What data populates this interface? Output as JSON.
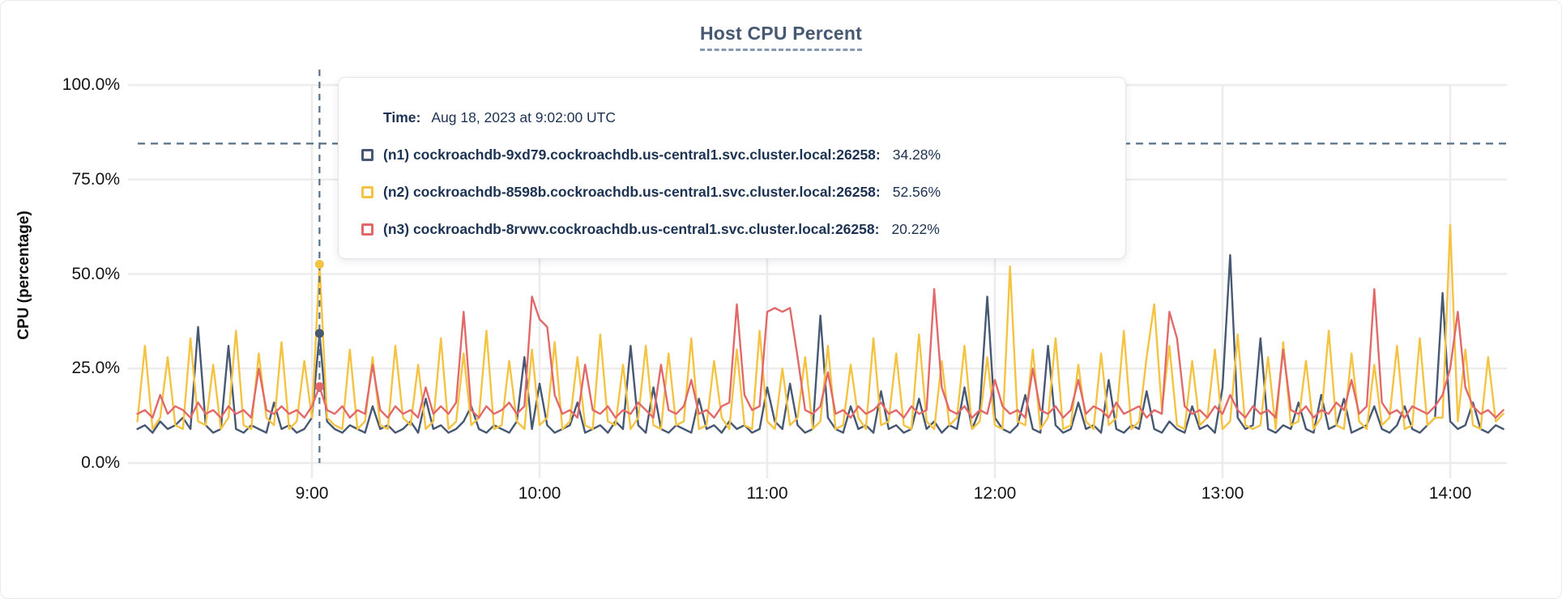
{
  "title": "Host CPU Percent",
  "tooltip": {
    "time_label": "Time:",
    "time_value": "Aug 18, 2023 at 9:02:00 UTC",
    "rows": [
      {
        "label": "(n1) cockroachdb-9xd79.cockroachdb.us-central1.svc.cluster.local:26258:",
        "value": "34.28%",
        "color": "#475872"
      },
      {
        "label": "(n2) cockroachdb-8598b.cockroachdb.us-central1.svc.cluster.local:26258:",
        "value": "52.56%",
        "color": "#f5c342"
      },
      {
        "label": "(n3) cockroachdb-8rvwv.cockroachdb.us-central1.svc.cluster.local:26258:",
        "value": "20.22%",
        "color": "#e2696a"
      }
    ]
  },
  "chart_data": {
    "type": "line",
    "title": "Host CPU Percent",
    "xlabel": "",
    "ylabel": "CPU (percentage)",
    "ylim": [
      0,
      100
    ],
    "y_ticks": [
      "100.0%",
      "75.0%",
      "50.0%",
      "25.0%",
      "0.0%"
    ],
    "y_tick_values": [
      100,
      75,
      50,
      25,
      0
    ],
    "x_ticks": [
      "9:00",
      "10:00",
      "11:00",
      "12:00",
      "13:00",
      "14:00"
    ],
    "x_tick_hours": [
      9,
      10,
      11,
      12,
      13,
      14
    ],
    "grid": true,
    "threshold_percent": 84.5,
    "hover": {
      "hour": 9.0333,
      "time": "Aug 18, 2023 at 9:02:00 UTC",
      "values": [
        34.28,
        52.56,
        20.22
      ]
    },
    "x_start_hour": 8.2333,
    "x_step_minutes": 2,
    "series": [
      {
        "name": "(n1) cockroachdb-9xd79.cockroachdb.us-central1.svc.cluster.local:26258",
        "color": "#475872",
        "values": [
          9,
          10,
          8,
          11,
          9,
          10,
          12,
          9,
          36,
          10,
          8,
          9,
          31,
          9,
          8,
          10,
          9,
          8,
          16,
          9,
          10,
          8,
          9,
          12,
          34.28,
          11,
          9,
          8,
          10,
          9,
          8,
          15,
          9,
          10,
          8,
          9,
          11,
          8,
          17,
          9,
          10,
          8,
          9,
          11,
          15,
          9,
          8,
          10,
          9,
          8,
          11,
          28,
          9,
          21,
          10,
          8,
          9,
          10,
          16,
          8,
          9,
          10,
          8,
          11,
          9,
          31,
          10,
          8,
          20,
          9,
          8,
          10,
          9,
          8,
          17,
          9,
          10,
          8,
          11,
          9,
          10,
          8,
          9,
          20,
          11,
          9,
          21,
          10,
          8,
          9,
          39,
          12,
          9,
          8,
          15,
          9,
          10,
          8,
          19,
          9,
          10,
          8,
          9,
          17,
          9,
          11,
          8,
          10,
          9,
          20,
          9,
          14,
          44,
          12,
          9,
          8,
          10,
          18,
          9,
          8,
          31,
          10,
          8,
          9,
          16,
          9,
          10,
          8,
          22,
          9,
          8,
          10,
          9,
          19,
          9,
          8,
          11,
          9,
          8,
          15,
          9,
          10,
          8,
          20,
          55,
          12,
          9,
          10,
          33,
          9,
          8,
          10,
          9,
          16,
          9,
          8,
          18,
          9,
          10,
          17,
          8,
          9,
          10,
          15,
          9,
          8,
          10,
          15,
          9,
          8,
          10,
          12,
          45,
          11,
          9,
          10,
          16,
          9,
          8,
          10,
          9
        ]
      },
      {
        "name": "(n2) cockroachdb-8598b.cockroachdb.us-central1.svc.cluster.local:26258",
        "color": "#f5c342",
        "values": [
          11,
          31,
          9,
          12,
          28,
          10,
          9,
          33,
          11,
          10,
          26,
          9,
          12,
          35,
          10,
          9,
          29,
          12,
          10,
          32,
          9,
          11,
          27,
          12,
          52.56,
          12,
          10,
          9,
          30,
          9,
          11,
          28,
          10,
          9,
          31,
          12,
          10,
          26,
          9,
          11,
          33,
          9,
          11,
          29,
          10,
          12,
          35,
          9,
          10,
          27,
          11,
          9,
          30,
          10,
          12,
          32,
          9,
          11,
          28,
          10,
          9,
          34,
          11,
          10,
          26,
          9,
          12,
          31,
          10,
          9,
          29,
          10,
          11,
          33,
          9,
          10,
          27,
          12,
          9,
          30,
          10,
          9,
          35,
          11,
          9,
          25,
          10,
          12,
          28,
          9,
          11,
          31,
          9,
          10,
          26,
          12,
          9,
          33,
          10,
          11,
          29,
          10,
          9,
          34,
          11,
          9,
          27,
          10,
          12,
          31,
          9,
          11,
          28,
          10,
          9,
          52,
          11,
          10,
          30,
          9,
          12,
          33,
          9,
          10,
          26,
          11,
          9,
          29,
          10,
          12,
          35,
          9,
          11,
          28,
          42,
          14,
          31,
          10,
          9,
          27,
          10,
          12,
          30,
          9,
          11,
          34,
          10,
          9,
          10,
          28,
          9,
          32,
          10,
          11,
          27,
          9,
          12,
          35,
          10,
          9,
          29,
          11,
          9,
          26,
          10,
          12,
          31,
          9,
          10,
          33,
          10,
          12,
          12,
          63,
          11,
          30,
          10,
          9,
          28,
          11,
          13
        ]
      },
      {
        "name": "(n3) cockroachdb-8rvwv.cockroachdb.us-central1.svc.cluster.local:26258",
        "color": "#e2696a",
        "values": [
          13,
          14,
          12,
          18,
          13,
          15,
          14,
          12,
          16,
          13,
          14,
          12,
          15,
          13,
          14,
          12,
          25,
          14,
          13,
          15,
          13,
          14,
          12,
          15,
          20.22,
          14,
          13,
          15,
          12,
          14,
          13,
          26,
          14,
          12,
          15,
          13,
          14,
          12,
          20,
          13,
          15,
          13,
          16,
          40,
          14,
          12,
          15,
          13,
          14,
          16,
          13,
          15,
          44,
          38,
          36,
          18,
          13,
          14,
          12,
          26,
          14,
          13,
          15,
          12,
          14,
          13,
          16,
          14,
          12,
          26,
          14,
          13,
          15,
          22,
          13,
          14,
          12,
          15,
          16,
          42,
          18,
          14,
          15,
          40,
          41,
          40,
          41,
          28,
          14,
          13,
          15,
          24,
          13,
          14,
          12,
          15,
          13,
          14,
          16,
          13,
          14,
          12,
          15,
          13,
          14,
          46,
          20,
          14,
          13,
          15,
          12,
          14,
          13,
          22,
          15,
          13,
          14,
          12,
          25,
          14,
          13,
          15,
          12,
          14,
          22,
          13,
          15,
          14,
          12,
          16,
          13,
          14,
          15,
          12,
          14,
          13,
          40,
          33,
          15,
          13,
          14,
          12,
          15,
          13,
          18,
          14,
          12,
          15,
          13,
          14,
          12,
          30,
          14,
          13,
          15,
          12,
          14,
          13,
          16,
          14,
          22,
          13,
          15,
          46,
          16,
          13,
          14,
          12,
          15,
          14,
          13,
          15,
          18,
          25,
          40,
          20,
          15,
          13,
          14,
          12,
          14
        ]
      }
    ]
  },
  "colors": {
    "grid": "#ececec",
    "dashed_slate": "#56708a",
    "title": "#475872",
    "tick_text": "#141414",
    "tooltip_text": "#1c3252"
  }
}
